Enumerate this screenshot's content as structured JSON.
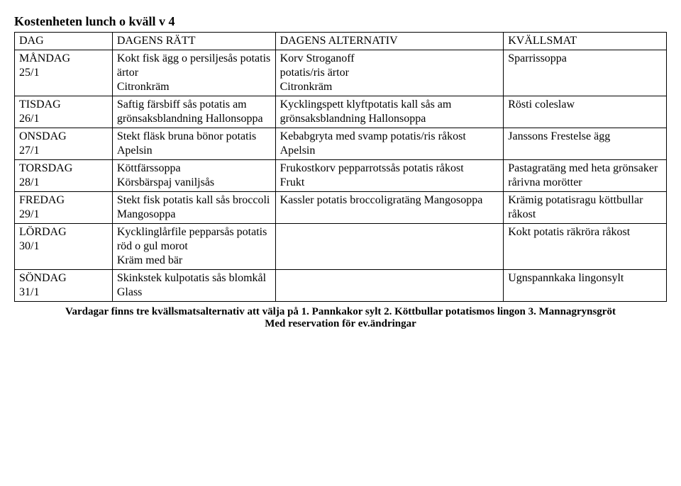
{
  "title": "Kostenheten lunch o kväll v  4",
  "columns": {
    "day": "DAG",
    "main": "DAGENS RÄTT",
    "alt": "DAGENS ALTERNATIV",
    "eve": "KVÄLLSMAT"
  },
  "rows": [
    {
      "day": "MÅNDAG\n25/1",
      "main": "Kokt fisk ägg o persiljesås potatis ärtor\nCitronkräm",
      "alt": "Korv Stroganoff\npotatis/ris ärtor\nCitronkräm",
      "eve": "Sparrissoppa"
    },
    {
      "day": "TISDAG\n26/1",
      "main": "Saftig färsbiff sås potatis am grönsaksblandning Hallonsoppa",
      "alt": "Kycklingspett klyftpotatis kall sås am grönsaksblandning Hallonsoppa",
      "eve": "Rösti coleslaw"
    },
    {
      "day": "ONSDAG\n27/1",
      "main": "Stekt fläsk bruna bönor potatis\nApelsin",
      "alt": "Kebabgryta med svamp potatis/ris råkost\nApelsin",
      "eve": "Janssons Frestelse ägg"
    },
    {
      "day": "TORSDAG\n28/1",
      "main": "Köttfärssoppa\nKörsbärspaj vaniljsås",
      "alt": "Frukostkorv pepparrotssås potatis råkost\nFrukt",
      "eve": "Pastagratäng med heta grönsaker rårivna morötter"
    },
    {
      "day": "FREDAG\n29/1",
      "main": "Stekt fisk potatis kall sås  broccoli\nMangosoppa",
      "alt": "Kassler potatis broccoligratäng Mangosoppa",
      "eve": "Krämig potatisragu köttbullar råkost"
    },
    {
      "day": "LÖRDAG\n30/1",
      "main": "Kycklinglårfile pepparsås potatis röd o gul morot\nKräm med bär",
      "alt": "",
      "eve": "Kokt potatis räkröra råkost"
    },
    {
      "day": "SÖNDAG\n31/1",
      "main": "Skinkstek kulpotatis sås blomkål\nGlass",
      "alt": "",
      "eve": "Ugnspannkaka lingonsylt"
    }
  ],
  "footer": {
    "line1": "Vardagar finns tre kvällsmatsalternativ att välja på 1. Pannkakor sylt 2. Köttbullar potatismos lingon 3. Mannagrynsgröt",
    "line2": "Med reservation för ev.ändringar"
  },
  "style": {
    "font_family": "Times New Roman",
    "title_fontsize_pt": 18,
    "body_fontsize_pt": 16,
    "footer_fontsize_pt": 15,
    "border_color": "#000000",
    "background_color": "#ffffff",
    "text_color": "#000000",
    "col_widths_pct": [
      15,
      25,
      35,
      25
    ]
  }
}
